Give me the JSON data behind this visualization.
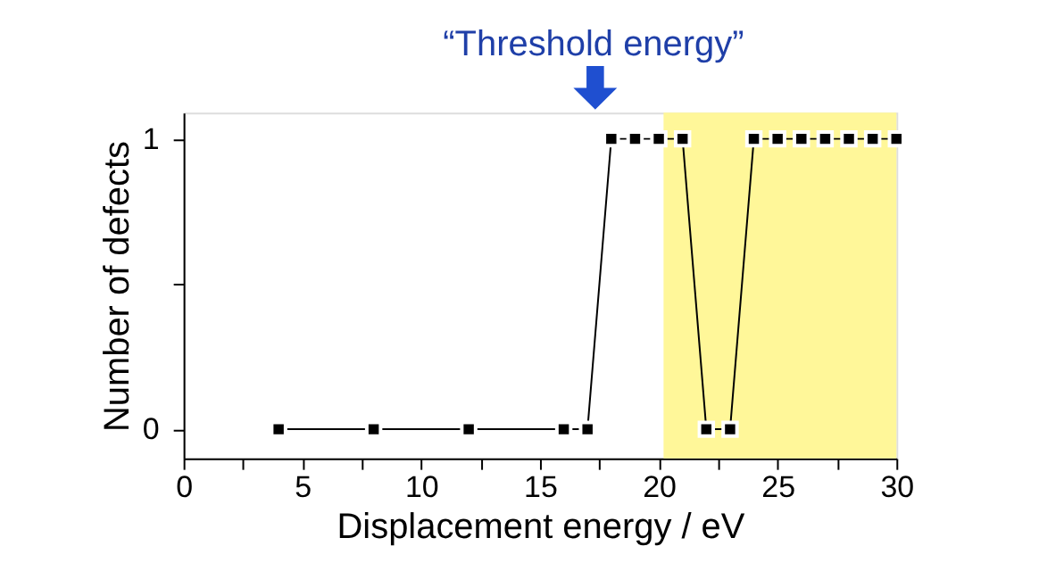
{
  "chart_data": {
    "type": "line",
    "xlabel": "Displacement energy  /  eV",
    "ylabel": "Number of defects",
    "x": [
      4,
      8,
      12,
      16,
      17,
      18,
      19,
      20,
      21,
      22,
      23,
      24,
      25,
      26,
      27,
      28,
      29,
      30
    ],
    "series": [
      {
        "color": "#000000",
        "values": [
          0,
          0,
          0,
          0,
          0,
          1,
          1,
          1,
          1,
          0,
          0,
          1,
          1,
          1,
          1,
          1,
          1,
          1
        ]
      }
    ],
    "xlim": [
      0,
      30
    ],
    "ylim": [
      -0.1,
      1.09
    ],
    "xticks": [
      0,
      {
        "value": 2.5,
        "label": null
      },
      5,
      {
        "value": 7.5,
        "label": null
      },
      10,
      {
        "value": 12.5,
        "label": null
      },
      15,
      {
        "value": 17.5,
        "label": null
      },
      20,
      {
        "value": 22.5,
        "label": null
      },
      25,
      {
        "value": 27.5,
        "label": null
      },
      30
    ],
    "yticks": [
      0,
      {
        "value": 0.5,
        "label": null
      },
      1
    ],
    "bands": [
      {
        "axis": "x",
        "from": 20.2,
        "to": 30,
        "color": "#fff799"
      }
    ],
    "annotations": [
      "“Threshold energy”"
    ],
    "marker": "square",
    "line_style": "solid",
    "grid": false,
    "legend": false
  }
}
